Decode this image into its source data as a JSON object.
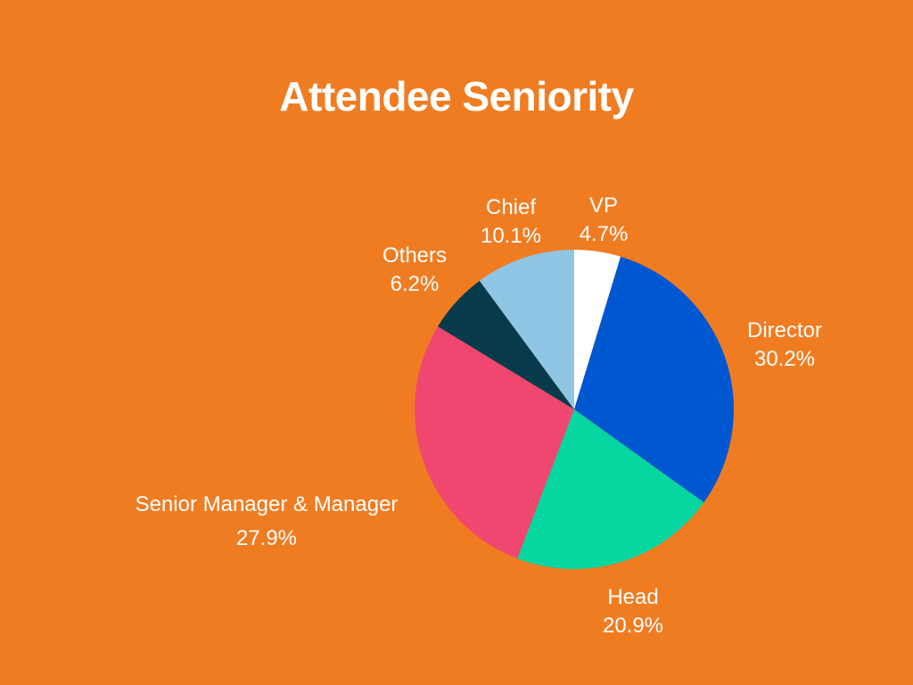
{
  "chart_data": {
    "type": "pie",
    "title": "Attendee Seniority",
    "slices": [
      {
        "label": "VP",
        "value": 4.7,
        "display": "4.7%",
        "color": "#FFFFFF"
      },
      {
        "label": "Director",
        "value": 30.2,
        "display": "30.2%",
        "color": "#0057D2"
      },
      {
        "label": "Head",
        "value": 20.9,
        "display": "20.9%",
        "color": "#06D6A0"
      },
      {
        "label": "Senior Manager & Manager",
        "value": 27.9,
        "display": "27.9%",
        "color": "#EF476F"
      },
      {
        "label": "Others",
        "value": 6.2,
        "display": "6.2%",
        "color": "#073B4C"
      },
      {
        "label": "Chief",
        "value": 10.1,
        "display": "10.1%",
        "color": "#8FC6E5"
      }
    ],
    "start_angle_deg": 0,
    "direction": "clockwise",
    "background_color": "#F07C22",
    "label_color": "#FFFFFF"
  }
}
